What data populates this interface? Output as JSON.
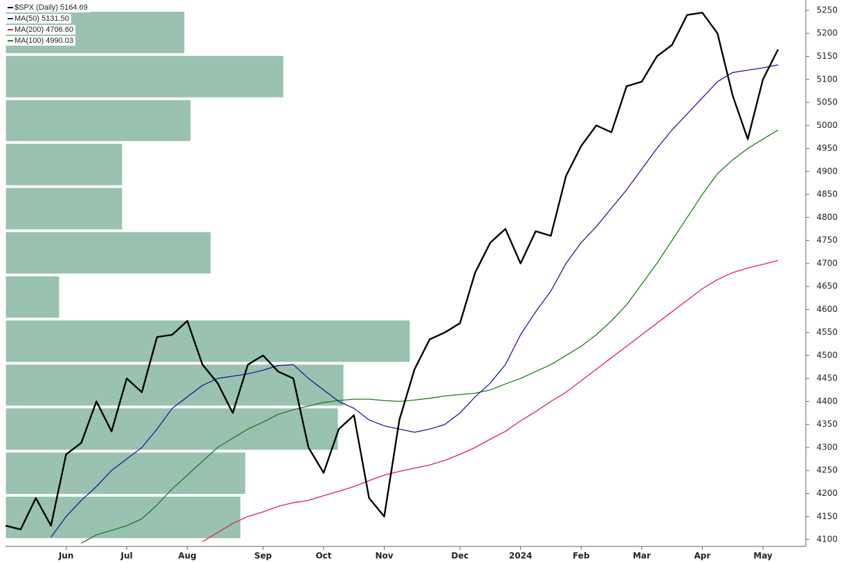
{
  "chart_data": {
    "type": "line",
    "categories": [
      null,
      null,
      null,
      null,
      "Jun",
      null,
      null,
      null,
      "Jul",
      null,
      null,
      null,
      "Aug",
      null,
      null,
      null,
      null,
      "Sep",
      null,
      null,
      null,
      "Oct",
      null,
      null,
      null,
      "Nov",
      null,
      null,
      null,
      null,
      "Dec",
      null,
      null,
      null,
      "2024",
      null,
      null,
      null,
      "Feb",
      null,
      null,
      null,
      "Mar",
      null,
      null,
      null,
      "Apr",
      null,
      null,
      null,
      "May",
      null
    ],
    "series": [
      {
        "name": "$SPX (Daily) 5164.69",
        "color": "#000000",
        "width": 2.4,
        "values": [
          4130,
          4122,
          4190,
          4130,
          4285,
          4310,
          4400,
          4335,
          4450,
          4420,
          4540,
          4545,
          4575,
          4480,
          4440,
          4375,
          4480,
          4500,
          4465,
          4450,
          4300,
          4245,
          4340,
          4370,
          4190,
          4150,
          4360,
          4470,
          4535,
          4550,
          4570,
          4680,
          4745,
          4775,
          4700,
          4770,
          4760,
          4890,
          4955,
          5000,
          4985,
          5085,
          5095,
          5150,
          5175,
          5240,
          5245,
          5200,
          5065,
          4970,
          5100,
          5165
        ]
      },
      {
        "name": "MA(50) 5131.50",
        "color": "#1a1a9a",
        "width": 1.3,
        "values": [
          null,
          null,
          null,
          4105,
          4150,
          4185,
          4215,
          4250,
          4275,
          4300,
          4340,
          4385,
          4410,
          4435,
          4450,
          4455,
          4460,
          4468,
          4478,
          4480,
          4450,
          4425,
          4400,
          4385,
          4360,
          4347,
          4340,
          4333,
          4340,
          4350,
          4375,
          4410,
          4440,
          4480,
          4545,
          4595,
          4640,
          4700,
          4745,
          4780,
          4820,
          4860,
          4905,
          4950,
          4990,
          5025,
          5060,
          5095,
          5115,
          5120,
          5125,
          5131.5
        ]
      },
      {
        "name": "MA(200) 4706.60",
        "color": "#e0204a",
        "width": 1.3,
        "values": [
          null,
          null,
          null,
          null,
          null,
          null,
          null,
          null,
          null,
          null,
          null,
          null,
          null,
          4095,
          4115,
          4135,
          4150,
          4160,
          4172,
          4180,
          4185,
          4195,
          4205,
          4215,
          4228,
          4240,
          4248,
          4255,
          4262,
          4272,
          4285,
          4300,
          4318,
          4335,
          4358,
          4378,
          4400,
          4420,
          4445,
          4470,
          4495,
          4520,
          4545,
          4570,
          4595,
          4620,
          4645,
          4665,
          4680,
          4690,
          4698,
          4706.6
        ]
      },
      {
        "name": "MA(100) 4990.03",
        "color": "#1a7a1a",
        "width": 1.3,
        "values": [
          null,
          null,
          null,
          null,
          null,
          4092,
          4110,
          4120,
          4130,
          4145,
          4175,
          4210,
          4240,
          4270,
          4300,
          4320,
          4340,
          4355,
          4372,
          4382,
          4390,
          4398,
          4402,
          4405,
          4405,
          4402,
          4400,
          4403,
          4407,
          4412,
          4415,
          4418,
          4425,
          4438,
          4450,
          4465,
          4480,
          4500,
          4520,
          4545,
          4575,
          4610,
          4655,
          4700,
          4750,
          4800,
          4850,
          4895,
          4925,
          4950,
          4970,
          4990
        ]
      }
    ],
    "volume_profile": {
      "color": "#99c2b0",
      "bins": [
        4100,
        4196,
        4292,
        4388,
        4483,
        4579,
        4675,
        4771,
        4867,
        4963,
        5058,
        5154,
        5250
      ],
      "values": [
        340,
        347,
        481,
        489,
        585,
        78,
        297,
        169,
        169,
        268,
        402,
        259
      ]
    },
    "ylim": [
      4085,
      5268
    ],
    "yticks": [
      4100,
      4150,
      4200,
      4250,
      4300,
      4350,
      4400,
      4450,
      4500,
      4550,
      4600,
      4650,
      4700,
      4750,
      4800,
      4850,
      4900,
      4950,
      5000,
      5050,
      5100,
      5150,
      5200,
      5250
    ]
  }
}
